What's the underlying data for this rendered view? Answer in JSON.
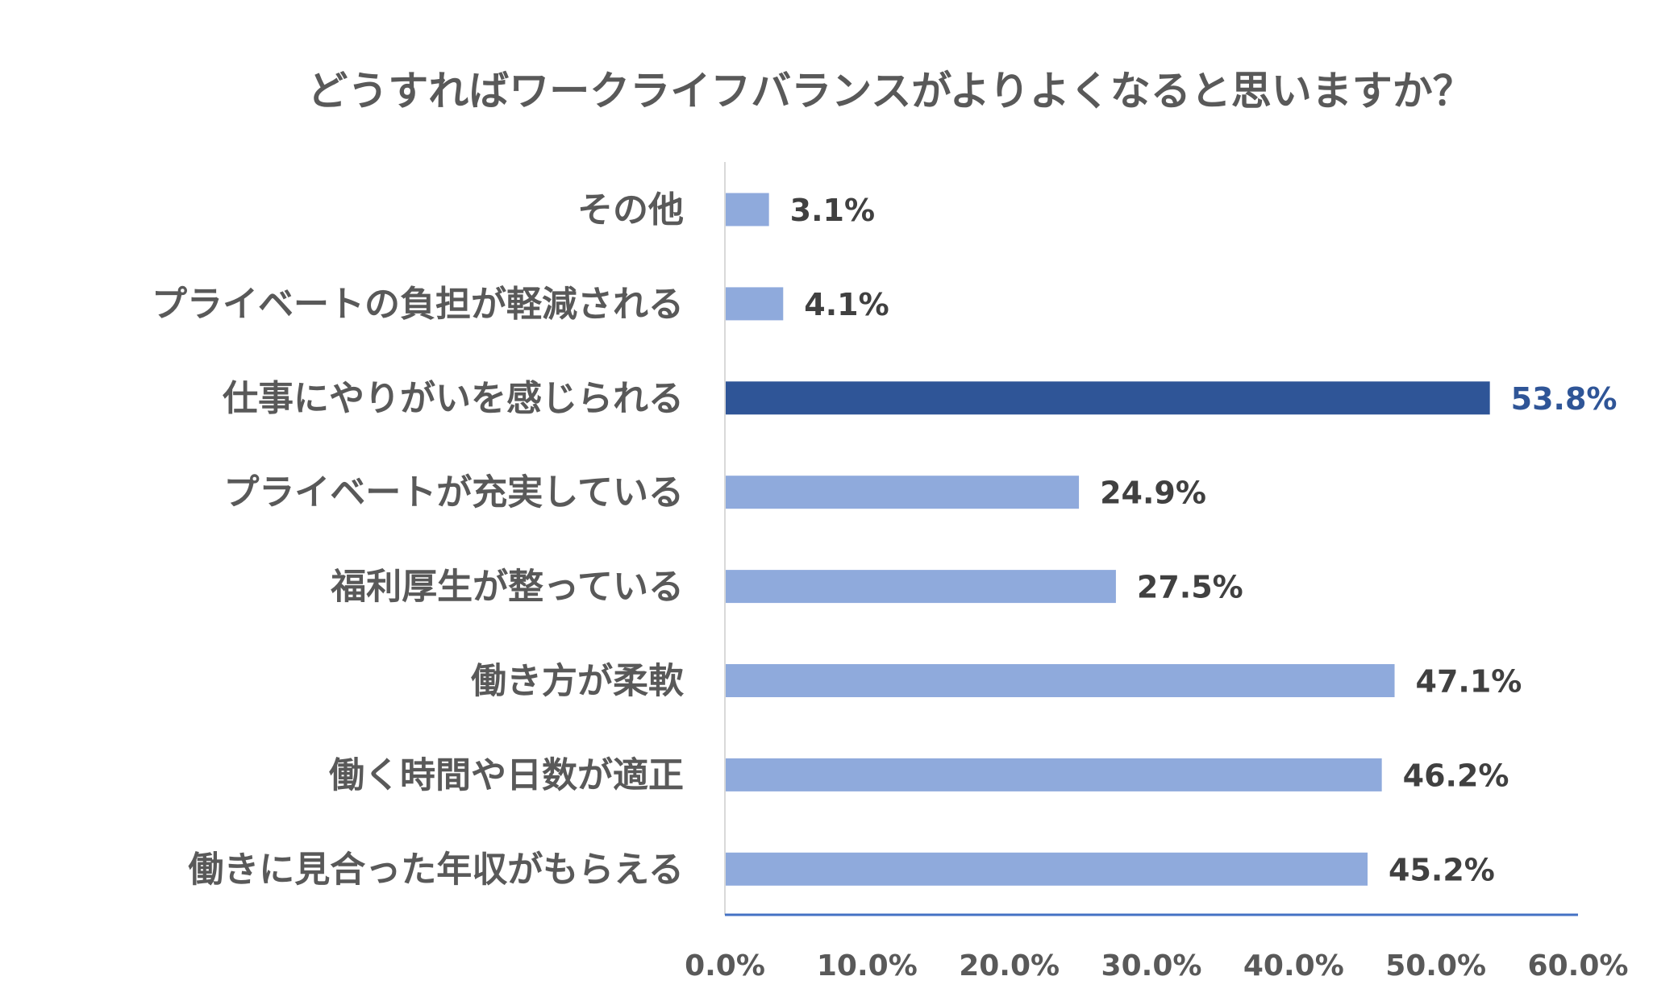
{
  "chart_data": {
    "type": "bar",
    "orientation": "horizontal",
    "title": "どうすればワークライフバランスがよりよくなると思いますか？",
    "categories": [
      "その他",
      "プライベートの負担が軽減される",
      "仕事にやりがいを感じられる",
      "プライベートが充実している",
      "福利厚生が整っている",
      "働き方が柔軟",
      "働く時間や日数が適正",
      "働きに見合った年収がもらえる"
    ],
    "values": [
      3.1,
      4.1,
      53.8,
      24.9,
      27.5,
      47.1,
      46.2,
      45.2
    ],
    "value_labels": [
      "3.1%",
      "4.1%",
      "53.8%",
      "24.9%",
      "27.5%",
      "47.1%",
      "46.2%",
      "45.2%"
    ],
    "highlight_index": 2,
    "xlim": [
      0,
      60
    ],
    "x_ticks": [
      0,
      10,
      20,
      30,
      40,
      50,
      60
    ],
    "x_tick_labels": [
      "0.0%",
      "10.0%",
      "20.0%",
      "30.0%",
      "40.0%",
      "50.0%",
      "60.0%"
    ],
    "xlabel": "",
    "ylabel": "",
    "grid": false,
    "colors": {
      "bar": "#8FAADC",
      "highlight": "#2F5597",
      "axis": "#4472C4",
      "label": "#404040"
    }
  }
}
